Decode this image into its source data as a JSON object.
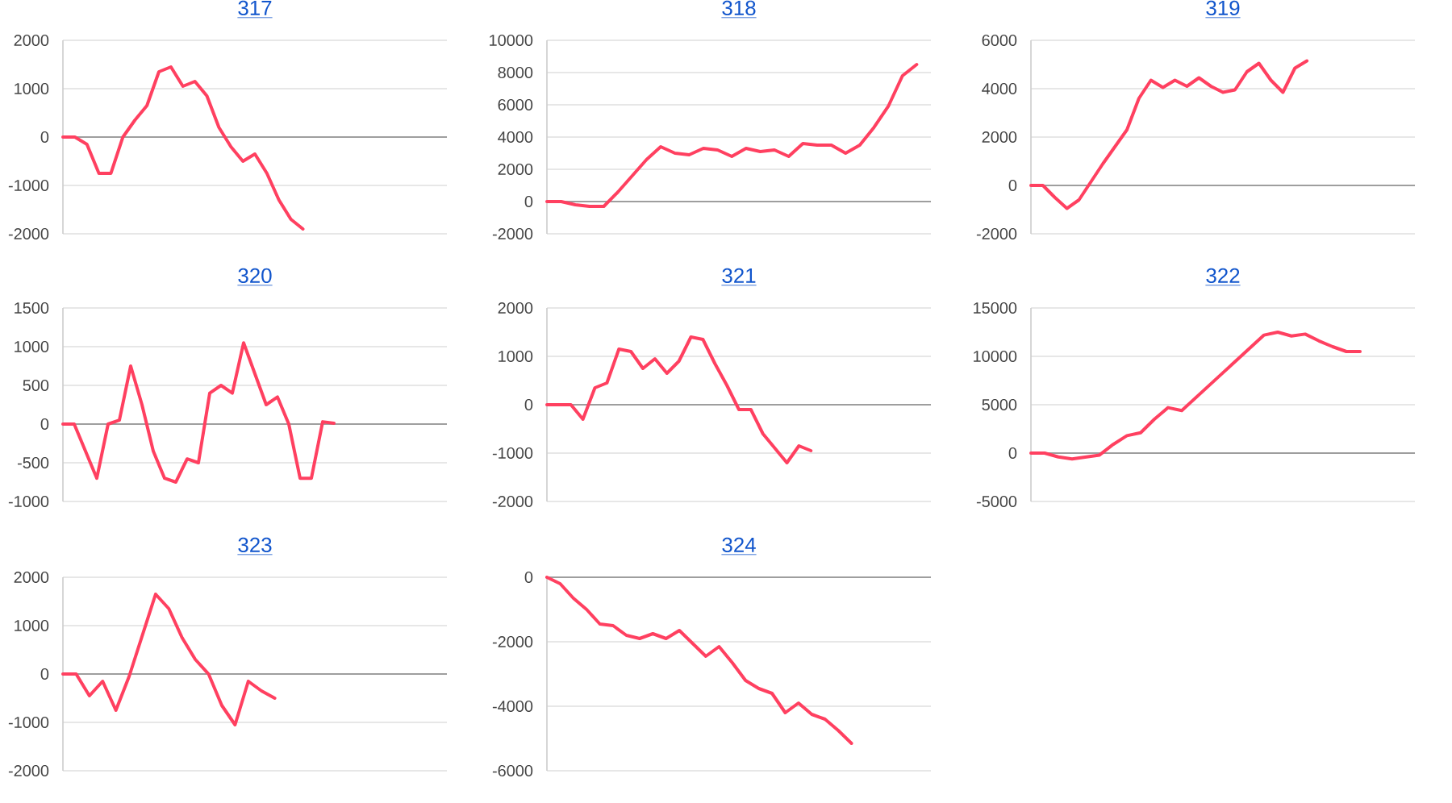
{
  "chart_data": [
    {
      "type": "line",
      "title": "317",
      "categories": [
        null,
        null,
        null,
        null,
        null,
        null,
        null,
        null,
        null,
        null,
        null,
        null,
        null,
        null,
        null,
        null,
        null,
        null,
        null,
        null,
        null,
        null,
        null,
        null,
        null,
        null,
        null,
        null,
        null,
        null,
        null,
        null,
        null
      ],
      "values": [
        0,
        0,
        -150,
        -750,
        -750,
        0,
        350,
        650,
        1350,
        1450,
        1050,
        1150,
        850,
        200,
        -200,
        -500,
        -350,
        -750,
        -1300,
        -1700,
        -1900,
        null,
        null,
        null,
        null,
        null,
        null,
        null,
        null,
        null,
        null,
        null,
        null
      ],
      "color": "#ff4060",
      "ylim": [
        -2000,
        2000
      ],
      "yticks": [
        -2000,
        -1000,
        0,
        1000,
        2000
      ],
      "grid": "y"
    },
    {
      "type": "line",
      "title": "318",
      "categories": [
        null,
        null,
        null,
        null,
        null,
        null,
        null,
        null,
        null,
        null,
        null,
        null,
        null,
        null,
        null,
        null,
        null,
        null,
        null,
        null,
        null,
        null,
        null,
        null,
        null,
        null,
        null,
        null
      ],
      "values": [
        0,
        0,
        -200,
        -300,
        -300,
        600,
        1600,
        2600,
        3400,
        3000,
        2900,
        3300,
        3200,
        2800,
        3300,
        3100,
        3200,
        2800,
        3600,
        3500,
        3500,
        3000,
        3500,
        4600,
        5900,
        7800,
        8500,
        null
      ],
      "color": "#ff4060",
      "ylim": [
        -2000,
        10000
      ],
      "yticks": [
        -2000,
        0,
        2000,
        4000,
        6000,
        8000,
        10000
      ],
      "grid": "y"
    },
    {
      "type": "line",
      "title": "319",
      "categories": [
        null,
        null,
        null,
        null,
        null,
        null,
        null,
        null,
        null,
        null,
        null,
        null,
        null,
        null,
        null,
        null,
        null,
        null,
        null,
        null,
        null,
        null,
        null,
        null,
        null,
        null,
        null,
        null,
        null,
        null,
        null,
        null,
        null
      ],
      "values": [
        0,
        0,
        -500,
        -950,
        -600,
        150,
        900,
        1600,
        2300,
        3600,
        4350,
        4050,
        4350,
        4100,
        4450,
        4100,
        3850,
        3950,
        4700,
        5050,
        4350,
        3850,
        4850,
        5150,
        null,
        null,
        null,
        null,
        null,
        null,
        null,
        null,
        null
      ],
      "color": "#ff4060",
      "ylim": [
        -2000,
        6000
      ],
      "yticks": [
        -2000,
        0,
        2000,
        4000,
        6000
      ],
      "grid": "y"
    },
    {
      "type": "line",
      "title": "320",
      "categories": [
        null,
        null,
        null,
        null,
        null,
        null,
        null,
        null,
        null,
        null,
        null,
        null,
        null,
        null,
        null,
        null,
        null,
        null,
        null,
        null,
        null,
        null,
        null,
        null,
        null,
        null,
        null,
        null,
        null,
        null,
        null,
        null,
        null,
        null,
        null
      ],
      "values": [
        0,
        0,
        -350,
        -700,
        0,
        50,
        750,
        250,
        -350,
        -700,
        -750,
        -450,
        -500,
        400,
        500,
        400,
        1050,
        650,
        250,
        350,
        0,
        -700,
        -700,
        30,
        10,
        null,
        null,
        null,
        null,
        null,
        null,
        null,
        null,
        null,
        null
      ],
      "color": "#ff4060",
      "ylim": [
        -1000,
        1500
      ],
      "yticks": [
        -1000,
        -500,
        0,
        500,
        1000,
        1500
      ],
      "grid": "y"
    },
    {
      "type": "line",
      "title": "321",
      "categories": [
        null,
        null,
        null,
        null,
        null,
        null,
        null,
        null,
        null,
        null,
        null,
        null,
        null,
        null,
        null,
        null,
        null,
        null,
        null,
        null,
        null,
        null,
        null,
        null,
        null,
        null,
        null,
        null,
        null,
        null,
        null,
        null,
        null
      ],
      "values": [
        0,
        0,
        0,
        -300,
        350,
        450,
        1150,
        1100,
        750,
        950,
        650,
        900,
        1400,
        1350,
        850,
        400,
        -100,
        -100,
        -600,
        -900,
        -1200,
        -850,
        -950,
        null,
        null,
        null,
        null,
        null,
        null,
        null,
        null,
        null,
        null
      ],
      "color": "#ff4060",
      "ylim": [
        -2000,
        2000
      ],
      "yticks": [
        -2000,
        -1000,
        0,
        1000,
        2000
      ],
      "grid": "y"
    },
    {
      "type": "line",
      "title": "322",
      "categories": [
        null,
        null,
        null,
        null,
        null,
        null,
        null,
        null,
        null,
        null,
        null,
        null,
        null,
        null,
        null,
        null,
        null,
        null,
        null,
        null,
        null,
        null,
        null,
        null,
        null,
        null,
        null,
        null,
        null
      ],
      "values": [
        0,
        0,
        -400,
        -600,
        -400,
        -200,
        900,
        1800,
        2100,
        3500,
        4700,
        4400,
        5700,
        7000,
        8300,
        9600,
        10900,
        12200,
        12500,
        12100,
        12300,
        11600,
        11000,
        10500,
        10500,
        null,
        null,
        null,
        null
      ],
      "color": "#ff4060",
      "ylim": [
        -5000,
        15000
      ],
      "yticks": [
        -5000,
        0,
        5000,
        10000,
        15000
      ],
      "grid": "y"
    },
    {
      "type": "line",
      "title": "323",
      "categories": [
        null,
        null,
        null,
        null,
        null,
        null,
        null,
        null,
        null,
        null,
        null,
        null,
        null,
        null,
        null,
        null,
        null,
        null,
        null,
        null,
        null,
        null,
        null,
        null,
        null,
        null,
        null,
        null,
        null,
        null
      ],
      "values": [
        0,
        0,
        -450,
        -150,
        -750,
        -50,
        800,
        1650,
        1350,
        750,
        300,
        0,
        -650,
        -1050,
        -150,
        -350,
        -500,
        null,
        null,
        null,
        null,
        null,
        null,
        null,
        null,
        null,
        null,
        null,
        null,
        null
      ],
      "color": "#ff4060",
      "ylim": [
        -2000,
        2000
      ],
      "yticks": [
        -2000,
        -1000,
        0,
        1000,
        2000
      ],
      "grid": "y"
    },
    {
      "type": "line",
      "title": "324",
      "categories": [
        null,
        null,
        null,
        null,
        null,
        null,
        null,
        null,
        null,
        null,
        null,
        null,
        null,
        null,
        null,
        null,
        null,
        null,
        null,
        null,
        null,
        null,
        null,
        null,
        null,
        null,
        null,
        null,
        null,
        null
      ],
      "values": [
        0,
        -200,
        -650,
        -1000,
        -1450,
        -1500,
        -1800,
        -1900,
        -1750,
        -1900,
        -1650,
        -2050,
        -2450,
        -2150,
        -2650,
        -3200,
        -3450,
        -3600,
        -4200,
        -3900,
        -4250,
        -4400,
        -4750,
        -5150,
        null,
        null,
        null,
        null,
        null,
        null
      ],
      "color": "#ff4060",
      "ylim": [
        -6000,
        0
      ],
      "yticks": [
        -6000,
        -4000,
        -2000,
        0
      ],
      "grid": "y"
    }
  ]
}
